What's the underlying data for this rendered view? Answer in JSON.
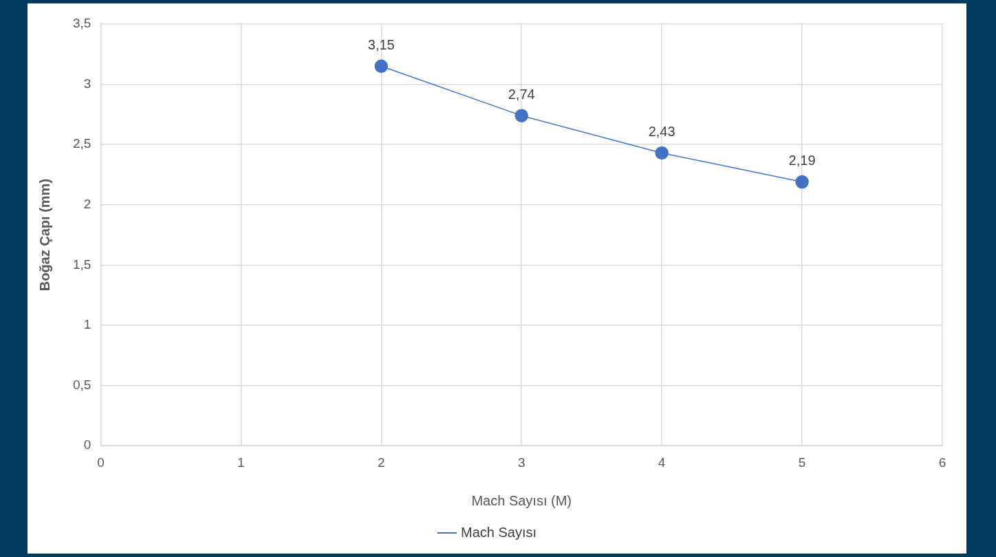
{
  "chart_data": {
    "type": "line",
    "xlabel": "Mach Sayısı (M)",
    "ylabel": "Boğaz Çapı (mm)",
    "x": [
      2,
      3,
      4,
      5
    ],
    "series": [
      {
        "name": "Mach Sayısı",
        "color": "#4472c4",
        "values": [
          3.15,
          2.74,
          2.43,
          2.19
        ],
        "value_labels": [
          "3,15",
          "2,74",
          "2,43",
          "2,19"
        ]
      }
    ],
    "xlim": [
      0,
      6
    ],
    "xticks": [
      0,
      1,
      2,
      3,
      4,
      5,
      6
    ],
    "ylim": [
      0,
      3.5
    ],
    "yticks": [
      0,
      {
        "value": 0.5,
        "label": "0,5"
      },
      1,
      {
        "value": 1.5,
        "label": "1,5"
      },
      2,
      {
        "value": 2.5,
        "label": "2,5"
      },
      3,
      {
        "value": 3.5,
        "label": "3,5"
      }
    ],
    "grid": true,
    "legend": "bottom",
    "marker": "circle",
    "line_style": "solid"
  }
}
